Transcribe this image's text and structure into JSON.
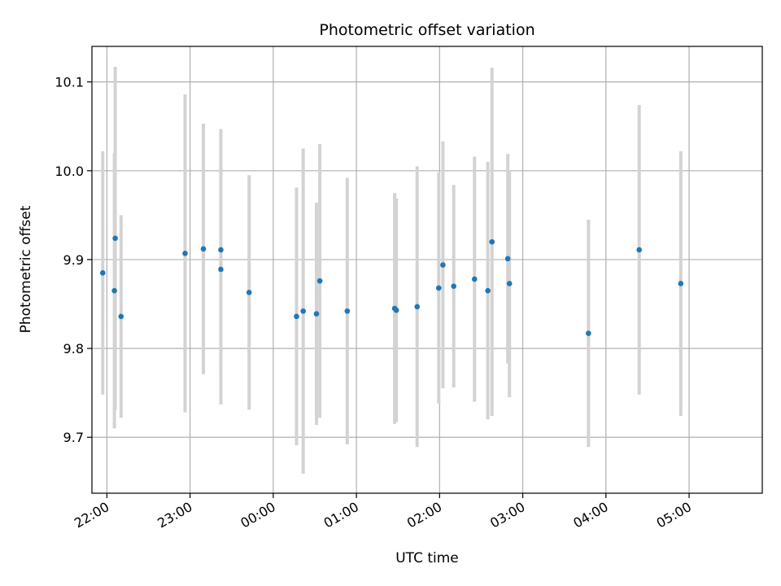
{
  "chart_data": {
    "type": "scatter",
    "title": "Photometric offset variation",
    "xlabel": "UTC time",
    "ylabel": "Photometric offset",
    "grid": true,
    "x_unit": "hours since 00:00 UTC",
    "xlim": [
      -2.18,
      5.88
    ],
    "ylim": [
      9.637,
      10.14
    ],
    "xticks": [
      {
        "value": -2,
        "label": "22:00"
      },
      {
        "value": -1,
        "label": "23:00"
      },
      {
        "value": 0,
        "label": "00:00"
      },
      {
        "value": 1,
        "label": "01:00"
      },
      {
        "value": 2,
        "label": "02:00"
      },
      {
        "value": 3,
        "label": "03:00"
      },
      {
        "value": 4,
        "label": "04:00"
      },
      {
        "value": 5,
        "label": "05:00"
      }
    ],
    "yticks": [
      {
        "value": 9.7,
        "label": "9.7"
      },
      {
        "value": 9.8,
        "label": "9.8"
      },
      {
        "value": 9.9,
        "label": "9.9"
      },
      {
        "value": 10.0,
        "label": "10.0"
      },
      {
        "value": 10.1,
        "label": "10.1"
      }
    ],
    "colors": {
      "points": "#1f77b4",
      "errorbars": "#d3d3d3",
      "grid": "#b0b0b0"
    },
    "series": [
      {
        "name": "offset",
        "points": [
          {
            "x": -2.05,
            "y": 9.885,
            "err": 0.137
          },
          {
            "x": -1.91,
            "y": 9.865,
            "err": 0.155
          },
          {
            "x": -1.9,
            "y": 9.924,
            "err": 0.193
          },
          {
            "x": -1.83,
            "y": 9.836,
            "err": 0.114
          },
          {
            "x": -1.06,
            "y": 9.907,
            "err": 0.179
          },
          {
            "x": -0.84,
            "y": 9.912,
            "err": 0.141
          },
          {
            "x": -0.63,
            "y": 9.911,
            "err": 0.136
          },
          {
            "x": -0.63,
            "y": 9.889,
            "err": 0.152
          },
          {
            "x": -0.29,
            "y": 9.863,
            "err": 0.132
          },
          {
            "x": 0.28,
            "y": 9.836,
            "err": 0.145
          },
          {
            "x": 0.36,
            "y": 9.842,
            "err": 0.183
          },
          {
            "x": 0.52,
            "y": 9.839,
            "err": 0.125
          },
          {
            "x": 0.56,
            "y": 9.876,
            "err": 0.154
          },
          {
            "x": 0.89,
            "y": 9.842,
            "err": 0.15
          },
          {
            "x": 1.46,
            "y": 9.845,
            "err": 0.13
          },
          {
            "x": 1.48,
            "y": 9.843,
            "err": 0.126
          },
          {
            "x": 1.73,
            "y": 9.847,
            "err": 0.158
          },
          {
            "x": 1.99,
            "y": 9.868,
            "err": 0.13
          },
          {
            "x": 2.04,
            "y": 9.894,
            "err": 0.139
          },
          {
            "x": 2.17,
            "y": 9.87,
            "err": 0.114
          },
          {
            "x": 2.42,
            "y": 9.878,
            "err": 0.138
          },
          {
            "x": 2.58,
            "y": 9.865,
            "err": 0.145
          },
          {
            "x": 2.63,
            "y": 9.92,
            "err": 0.196
          },
          {
            "x": 2.82,
            "y": 9.901,
            "err": 0.118
          },
          {
            "x": 2.84,
            "y": 9.873,
            "err": 0.128
          },
          {
            "x": 3.79,
            "y": 9.817,
            "err": 0.128
          },
          {
            "x": 4.4,
            "y": 9.911,
            "err": 0.163
          },
          {
            "x": 4.9,
            "y": 9.873,
            "err": 0.149
          }
        ]
      }
    ]
  }
}
